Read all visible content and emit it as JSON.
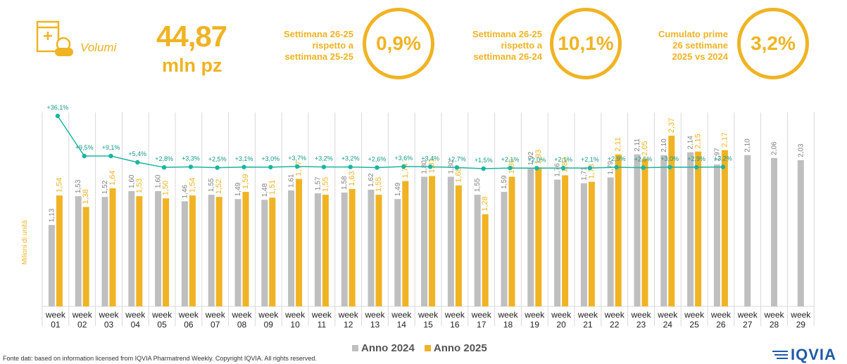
{
  "header": {
    "icon": "pill-box-icon",
    "label": "Volumi",
    "value": "44,87",
    "unit": "mln pz"
  },
  "comparisons": [
    {
      "text": "Settimana 26-25\nrispetto a\nsettimana 25-25",
      "value": "0,9%"
    },
    {
      "text": "Settimana 26-25\nrispetto a\nsettimana 26-24",
      "value": "10,1%"
    },
    {
      "text": "Cumulato prime\n26 settimane\n2025 vs 2024",
      "value": "3,2%"
    }
  ],
  "colors": {
    "accent": "#f0b323",
    "gray": "#bfbfbf",
    "line": "#1bb5a0"
  },
  "chart_data": {
    "type": "bar",
    "ylabel": "Milioni di unità",
    "categories": [
      "week\n01",
      "week\n02",
      "week\n03",
      "week\n04",
      "week\n05",
      "week\n06",
      "week\n07",
      "week\n08",
      "week\n09",
      "week\n10",
      "week\n11",
      "week\n12",
      "week\n13",
      "week\n14",
      "week\n15",
      "week\n16",
      "week\n17",
      "week\n18",
      "week\n19",
      "week\n20",
      "week\n21",
      "week\n22",
      "week\n23",
      "week\n24",
      "week\n25",
      "week\n26",
      "week\n27",
      "week\n28",
      "week\n29"
    ],
    "series": [
      {
        "name": "Anno 2024",
        "color": "#bfbfbf",
        "values": [
          1.13,
          1.53,
          1.52,
          1.6,
          1.6,
          1.46,
          1.55,
          1.49,
          1.48,
          1.61,
          1.57,
          1.58,
          1.62,
          1.49,
          1.8,
          1.8,
          1.55,
          1.59,
          1.92,
          1.76,
          1.71,
          1.79,
          2.11,
          2.1,
          2.14,
          1.97,
          2.1,
          2.06,
          2.03
        ]
      },
      {
        "name": "Anno 2025",
        "color": "#f0b323",
        "values": [
          1.54,
          1.38,
          1.64,
          1.53,
          1.5,
          1.54,
          1.52,
          1.59,
          1.51,
          1.77,
          1.55,
          1.63,
          1.55,
          1.74,
          1.81,
          1.68,
          1.28,
          1.8,
          1.93,
          1.82,
          1.73,
          2.11,
          2.05,
          2.37,
          2.15,
          2.17,
          null,
          null,
          null
        ]
      }
    ],
    "labels_2024": [
      "1,13",
      "1,53",
      "1,52",
      "1,60",
      "1,60",
      "1,46",
      "1,55",
      "1,49",
      "1,48",
      "1,61",
      "1,57",
      "1,58",
      "1,62",
      "1,49",
      "1,80",
      "1,80",
      "1,55",
      "1,59",
      "1,92",
      "1,76",
      "1,71",
      "1,79",
      "2,11",
      "2,10",
      "2,14",
      "1,97",
      "2,10",
      "2,06",
      "2,03"
    ],
    "labels_2025": [
      "1,54",
      "1,38",
      "1,64",
      "1,53",
      "1,50",
      "1,54",
      "1,52",
      "1,59",
      "1,51",
      "1,77",
      "1,55",
      "1,63",
      "1,55",
      "1,74",
      "1,81",
      "1,68",
      "1,28",
      "1,80",
      "1,93",
      "1,82",
      "1,73",
      "2,11",
      "2,05",
      "2,37",
      "2,15",
      "2,17"
    ],
    "growth": {
      "values": [
        36.1,
        9.5,
        9.1,
        5.4,
        2.8,
        3.3,
        2.5,
        3.1,
        3.0,
        3.7,
        3.2,
        3.2,
        2.6,
        3.6,
        3.4,
        2.7,
        1.5,
        2.1,
        2.0,
        2.1,
        2.1,
        2.9,
        2.5,
        3.0,
        2.9,
        3.2
      ],
      "labels": [
        "+36,1%",
        "+9,5%",
        "+9,1%",
        "+5,4%",
        "+2,8%",
        "+3,3%",
        "+2,5%",
        "+3,1%",
        "+3,0%",
        "+3,7%",
        "+3,2%",
        "+3,2%",
        "+2,6%",
        "+3,6%",
        "+3,4%",
        "+2,7%",
        "+1,5%",
        "+2,1%",
        "+2,0%",
        "+2,1%",
        "+2,1%",
        "+2,9%",
        "+2,5%",
        "+3,0%",
        "+2,9%",
        "+3,2%"
      ]
    },
    "ylim": [
      0,
      2.9
    ],
    "grid": "vertical separators"
  },
  "legend": [
    {
      "label": "Anno 2024",
      "color": "#bfbfbf"
    },
    {
      "label": "Anno 2025",
      "color": "#f0b323"
    }
  ],
  "footer": "Fonte dati: based on information licensed from IQVIA Pharmatrend Weekly. Copyright IQVIA. All rights reserved.",
  "logo": "IQVIA"
}
